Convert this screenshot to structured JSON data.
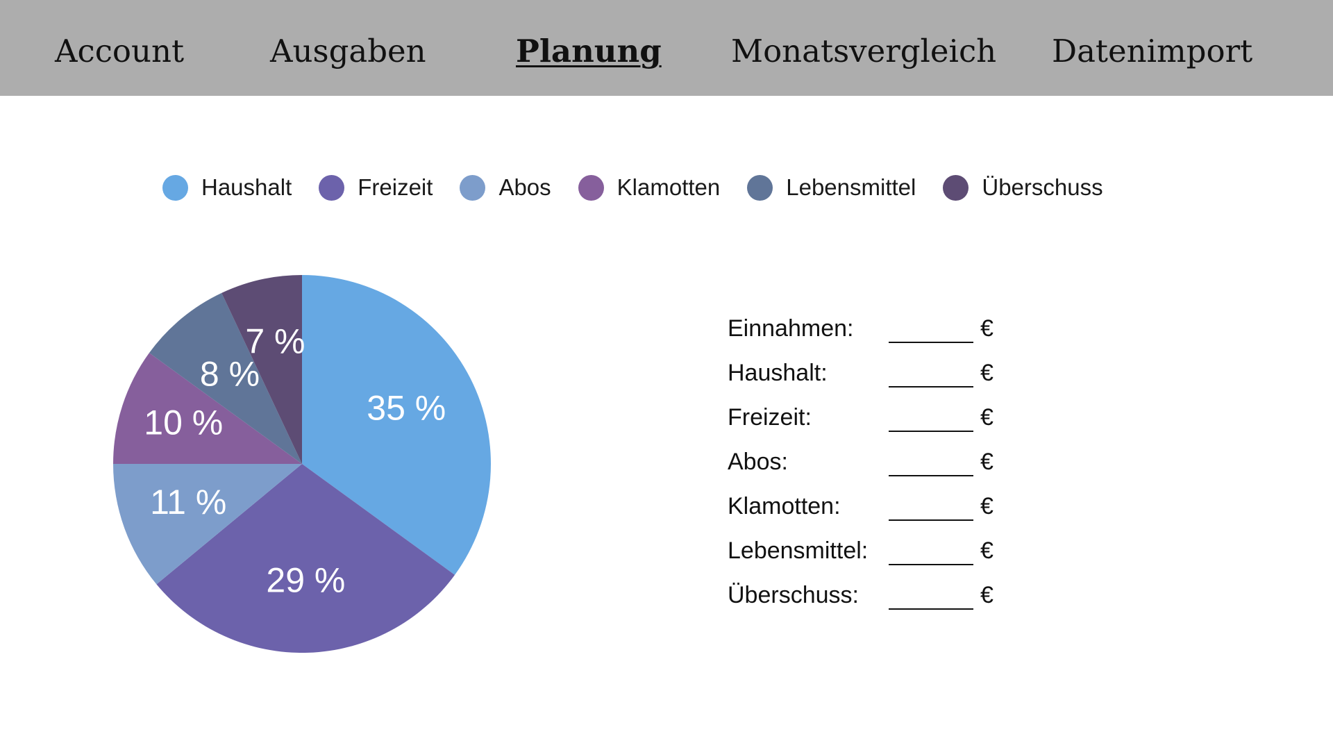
{
  "nav": {
    "items": [
      {
        "label": "Account"
      },
      {
        "label": "Ausgaben"
      },
      {
        "label": "Planung",
        "active": true
      },
      {
        "label": "Monatsvergleich"
      },
      {
        "label": "Datenimport"
      }
    ]
  },
  "chart_data": {
    "type": "pie",
    "categories": [
      "Haushalt",
      "Freizeit",
      "Abos",
      "Klamotten",
      "Lebensmittel",
      "Überschuss"
    ],
    "values": [
      35,
      29,
      11,
      10,
      8,
      7
    ],
    "value_labels": [
      "35 %",
      "29 %",
      "11 %",
      "10 %",
      "8 %",
      "7 %"
    ],
    "colors": [
      "#66a8e3",
      "#6c62ab",
      "#7d9dcb",
      "#865f9c",
      "#607598",
      "#5d4c74"
    ],
    "legend_position": "top"
  },
  "budget": {
    "rows": [
      {
        "label": "Einnahmen:",
        "value": "",
        "unit": "€"
      },
      {
        "label": "Haushalt:",
        "value": "",
        "unit": "€"
      },
      {
        "label": "Freizeit:",
        "value": "",
        "unit": "€"
      },
      {
        "label": "Abos:",
        "value": "",
        "unit": "€"
      },
      {
        "label": "Klamotten:",
        "value": "",
        "unit": "€"
      },
      {
        "label": "Lebensmittel:",
        "value": "",
        "unit": "€"
      },
      {
        "label": "Überschuss:",
        "value": "",
        "unit": "€"
      }
    ]
  }
}
